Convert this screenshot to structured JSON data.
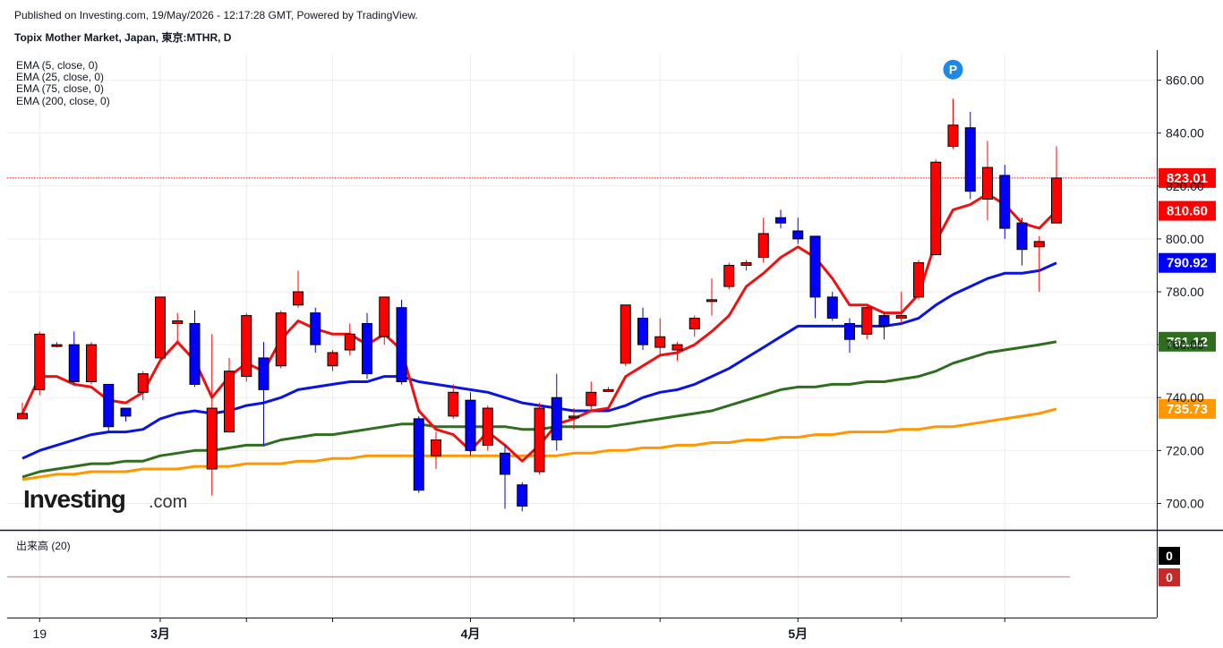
{
  "header": {
    "published": "Published on Investing.com, 19/May/2026 - 12:17:28 GMT, Powered by TradingView.",
    "symbol": "Topix Mother Market, Japan, 東京:MTHR, D"
  },
  "logo": {
    "brand": "Investing",
    "suffix": ".com"
  },
  "indicators": [
    "EMA (5, close, 0)",
    "EMA (25, close, 0)",
    "EMA (75, close, 0)",
    "EMA (200, close, 0)"
  ],
  "volume_panel": {
    "label": "出来高 (20)",
    "value_a": "0",
    "value_b": "0"
  },
  "marker": {
    "letter": "P"
  },
  "price_labels": [
    {
      "text": "823.01",
      "value": 823.01,
      "color": "#ff0000"
    },
    {
      "text": "810.60",
      "value": 810.6,
      "color": "#ff0000"
    },
    {
      "text": "790.92",
      "value": 790.92,
      "color": "#0000ff"
    },
    {
      "text": "761.12",
      "value": 761.12,
      "color": "#2e6e1e"
    },
    {
      "text": "735.73",
      "value": 735.73,
      "color": "#ff9800"
    }
  ],
  "colors": {
    "up": "#ff0000",
    "down": "#0000ff",
    "ema5": "#ee1111",
    "ema25": "#0a14e0",
    "ema75": "#2e6e1e",
    "ema200": "#ff9800",
    "last_line": "#ff0000"
  },
  "chart_data": {
    "type": "candlestick",
    "ylim": [
      690,
      870
    ],
    "y_ticks": [
      700,
      720,
      740,
      760,
      780,
      800,
      820,
      840,
      860
    ],
    "y_tick_labels": [
      "700.00",
      "720.00",
      "740.00",
      "760.00",
      "780.00",
      "800.00",
      "820.00",
      "840.00",
      "860.00"
    ],
    "x_tick_labels": [
      {
        "text": "19",
        "index": 1
      },
      {
        "text": "3月",
        "index": 8
      },
      {
        "text": "4月",
        "index": 26
      },
      {
        "text": "5月",
        "index": 45
      }
    ],
    "x_minor_ticks": [
      1,
      8,
      13,
      18,
      26,
      32,
      37,
      45,
      51,
      57
    ],
    "last_close_line": 823.01,
    "candles": [
      [
        732,
        734,
        738,
        732
      ],
      [
        743,
        764,
        765,
        741
      ],
      [
        760,
        760,
        761,
        759
      ],
      [
        760,
        746,
        765,
        745
      ],
      [
        746,
        760,
        761,
        745
      ],
      [
        745,
        729,
        745,
        727
      ],
      [
        736,
        733,
        736,
        731
      ],
      [
        742,
        749,
        750,
        739
      ],
      [
        755,
        778,
        778,
        755
      ],
      [
        768,
        769,
        772,
        761
      ],
      [
        768,
        745,
        773,
        744
      ],
      [
        713,
        736,
        764,
        703
      ],
      [
        727,
        750,
        755,
        727
      ],
      [
        748,
        771,
        772,
        746
      ],
      [
        755,
        743,
        761,
        722
      ],
      [
        752,
        772,
        773,
        751
      ],
      [
        775,
        780,
        788,
        774
      ],
      [
        772,
        760,
        774,
        757
      ],
      [
        752,
        757,
        758,
        750
      ],
      [
        758,
        764,
        768,
        756
      ],
      [
        768,
        749,
        772,
        747
      ],
      [
        763,
        778,
        778,
        760
      ],
      [
        774,
        746,
        777,
        745
      ],
      [
        732,
        705,
        733,
        704
      ],
      [
        718,
        724,
        727,
        713
      ],
      [
        733,
        742,
        745,
        732
      ],
      [
        739,
        720,
        742,
        718
      ],
      [
        722,
        736,
        737,
        720
      ],
      [
        719,
        711,
        722,
        698
      ],
      [
        707,
        699,
        708,
        697
      ],
      [
        712,
        736,
        738,
        711
      ],
      [
        740,
        724,
        749,
        720
      ],
      [
        733,
        733,
        736,
        728
      ],
      [
        737,
        742,
        746,
        735
      ],
      [
        743,
        743,
        744,
        742
      ],
      [
        753,
        775,
        775,
        752
      ],
      [
        770,
        760,
        774,
        758
      ],
      [
        759,
        763,
        770,
        756
      ],
      [
        758,
        760,
        761,
        754
      ],
      [
        766,
        770,
        771,
        763
      ],
      [
        777,
        777,
        785,
        771
      ],
      [
        782,
        790,
        791,
        781
      ],
      [
        790,
        791,
        792,
        788
      ],
      [
        793,
        802,
        808,
        791
      ],
      [
        808,
        806,
        811,
        804
      ],
      [
        803,
        800,
        808,
        798
      ],
      [
        801,
        778,
        801,
        770
      ],
      [
        778,
        770,
        780,
        769
      ],
      [
        768,
        762,
        770,
        757
      ],
      [
        764,
        774,
        775,
        762
      ],
      [
        771,
        767,
        772,
        762
      ],
      [
        770,
        771,
        780,
        768
      ],
      [
        778,
        791,
        792,
        777
      ],
      [
        794,
        829,
        830,
        794
      ],
      [
        835,
        843,
        853,
        834
      ],
      [
        842,
        818,
        848,
        815
      ],
      [
        815,
        827,
        837,
        807
      ],
      [
        824,
        804,
        828,
        800
      ],
      [
        806,
        796,
        808,
        790
      ],
      [
        797,
        799,
        801,
        780
      ],
      [
        806,
        823,
        835,
        806
      ]
    ],
    "ema5": [
      734,
      748,
      748,
      745,
      744,
      739,
      738,
      742,
      754,
      761,
      754,
      740,
      748,
      753,
      750,
      762,
      769,
      766,
      764,
      764,
      760,
      764,
      758,
      735,
      728,
      726,
      720,
      727,
      722,
      716,
      722,
      730,
      732,
      735,
      736,
      748,
      752,
      756,
      757,
      760,
      765,
      771,
      782,
      787,
      793,
      797,
      793,
      785,
      775,
      775,
      772,
      772,
      779,
      799,
      811,
      813,
      817,
      813,
      806,
      804,
      810.6
    ],
    "ema25": [
      717,
      720,
      722,
      724,
      726,
      727,
      727,
      728,
      732,
      734,
      735,
      734,
      735,
      737,
      738,
      740,
      743,
      744,
      745,
      746,
      746,
      748,
      748,
      746,
      745,
      744,
      743,
      742,
      740,
      738,
      737,
      736,
      735,
      735,
      735,
      737,
      740,
      742,
      743,
      745,
      748,
      751,
      755,
      759,
      763,
      767,
      767,
      767,
      767,
      767,
      767,
      768,
      770,
      775,
      779,
      782,
      785,
      787,
      787,
      788,
      790.92
    ],
    "ema75": [
      710,
      712,
      713,
      714,
      715,
      715,
      716,
      716,
      718,
      719,
      720,
      720,
      721,
      722,
      722,
      724,
      725,
      726,
      726,
      727,
      728,
      729,
      730,
      730,
      729,
      729,
      729,
      729,
      729,
      728,
      728,
      729,
      729,
      729,
      729,
      730,
      731,
      732,
      733,
      734,
      735,
      737,
      739,
      741,
      743,
      744,
      744,
      745,
      745,
      746,
      746,
      747,
      748,
      750,
      753,
      755,
      757,
      758,
      759,
      760,
      761.12
    ],
    "ema200": [
      709,
      710,
      711,
      711,
      712,
      712,
      712,
      713,
      713,
      713,
      714,
      714,
      714,
      715,
      715,
      715,
      716,
      716,
      717,
      717,
      718,
      718,
      718,
      718,
      718,
      718,
      718,
      718,
      718,
      718,
      718,
      718,
      719,
      719,
      720,
      720,
      721,
      721,
      722,
      722,
      723,
      723,
      724,
      724,
      725,
      725,
      726,
      726,
      727,
      727,
      727,
      728,
      728,
      729,
      729,
      730,
      731,
      732,
      733,
      734,
      735.73
    ],
    "signal_marker": {
      "letter": "P",
      "index": 54,
      "y": 864
    }
  }
}
